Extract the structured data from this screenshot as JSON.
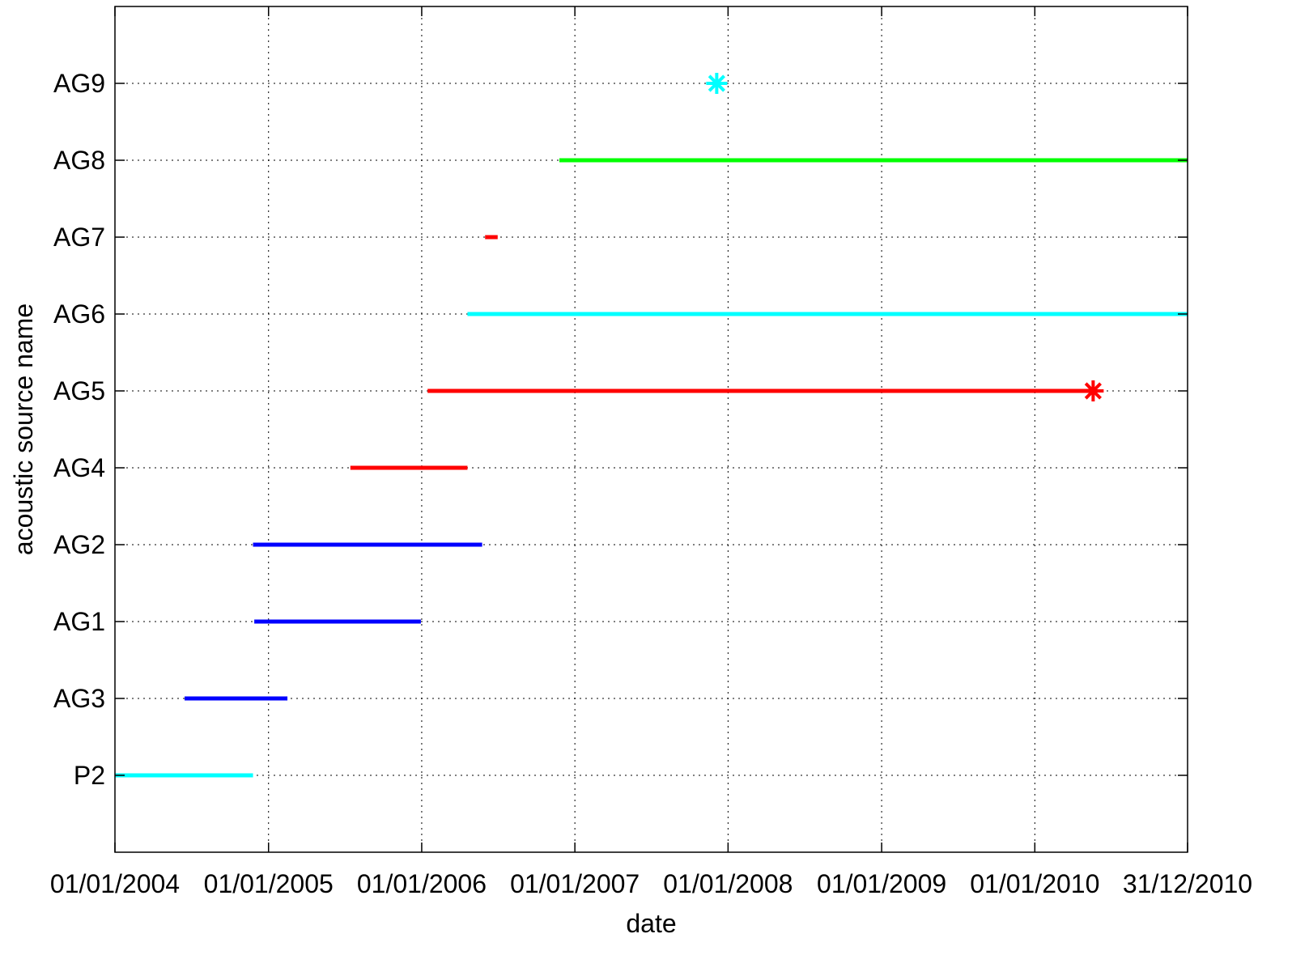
{
  "chart_data": {
    "type": "timeline",
    "xlabel": "date",
    "ylabel": "acoustic source name",
    "x_axis_type": "date",
    "xlim": [
      "2004-01-01",
      "2010-12-31"
    ],
    "x_ticks": [
      {
        "date": "2004-01-01",
        "label": "01/01/2004"
      },
      {
        "date": "2005-01-01",
        "label": "01/01/2005"
      },
      {
        "date": "2006-01-01",
        "label": "01/01/2006"
      },
      {
        "date": "2007-01-01",
        "label": "01/01/2007"
      },
      {
        "date": "2008-01-01",
        "label": "01/01/2008"
      },
      {
        "date": "2009-01-01",
        "label": "01/01/2009"
      },
      {
        "date": "2010-01-01",
        "label": "01/01/2010"
      },
      {
        "date": "2010-12-31",
        "label": "31/12/2010"
      }
    ],
    "categories": [
      "P2",
      "AG3",
      "AG1",
      "AG2",
      "AG4",
      "AG5",
      "AG6",
      "AG7",
      "AG8",
      "AG9"
    ],
    "grid": true,
    "intervals": [
      {
        "source": "P2",
        "start": "2004-01-01",
        "end": "2004-11-25",
        "color": "#00ffff"
      },
      {
        "source": "AG3",
        "start": "2004-06-15",
        "end": "2005-02-15",
        "color": "#0000ff"
      },
      {
        "source": "AG1",
        "start": "2004-11-28",
        "end": "2005-12-30",
        "color": "#0000ff"
      },
      {
        "source": "AG2",
        "start": "2004-11-25",
        "end": "2006-05-25",
        "color": "#0000ff"
      },
      {
        "source": "AG4",
        "start": "2005-07-15",
        "end": "2006-04-20",
        "color": "#ff0000"
      },
      {
        "source": "AG5",
        "start": "2006-01-15",
        "end": "2010-05-20",
        "color": "#ff0000"
      },
      {
        "source": "AG6",
        "start": "2006-04-20",
        "end": "2010-12-31",
        "color": "#00ffff"
      },
      {
        "source": "AG7",
        "start": "2006-06-01",
        "end": "2006-07-01",
        "color": "#ff0000"
      },
      {
        "source": "AG8",
        "start": "2006-11-25",
        "end": "2010-12-31",
        "color": "#00ff00"
      }
    ],
    "markers": [
      {
        "source": "AG9",
        "date": "2007-12-05",
        "symbol": "asterisk",
        "color": "#00ffff"
      },
      {
        "source": "AG5",
        "date": "2010-05-20",
        "symbol": "asterisk",
        "color": "#ff0000"
      }
    ]
  }
}
